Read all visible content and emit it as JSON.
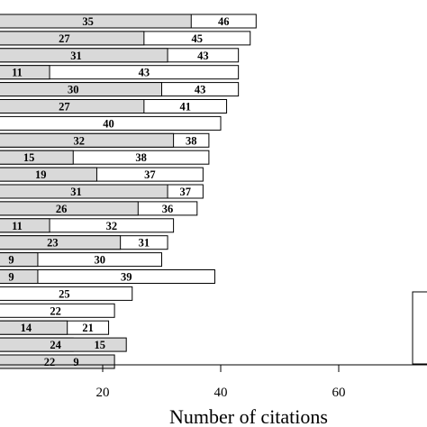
{
  "chart_data": {
    "type": "bar",
    "orientation": "horizontal",
    "stacked": true,
    "xlabel": "Number of citations",
    "xticks": [
      20,
      40,
      60
    ],
    "series": [
      {
        "name": "",
        "color": "#d9d9d9",
        "values": [
          35,
          27,
          31,
          11,
          30,
          27,
          2,
          32,
          15,
          19,
          31,
          26,
          11,
          23,
          9,
          9,
          2,
          2,
          14,
          24,
          22
        ]
      },
      {
        "name": "",
        "color": "#ffffff",
        "values": [
          46,
          45,
          43,
          43,
          43,
          41,
          40,
          38,
          38,
          37,
          37,
          36,
          32,
          31,
          30,
          39,
          25,
          22,
          21,
          15,
          9
        ]
      }
    ],
    "first_series_labels": [
      "35",
      "27",
      "31",
      "11",
      "30",
      "27",
      "",
      "32",
      "15",
      "19",
      "31",
      "26",
      "11",
      "23",
      "9",
      "9",
      "",
      "",
      "14",
      "24",
      "22"
    ],
    "second_series_labels": [
      "46",
      "45",
      "43",
      "43",
      "43",
      "41",
      "40",
      "38",
      "38",
      "37",
      "37",
      "36",
      "32",
      "31",
      "30",
      "39",
      "25",
      "22",
      "21",
      "15",
      "9"
    ]
  }
}
